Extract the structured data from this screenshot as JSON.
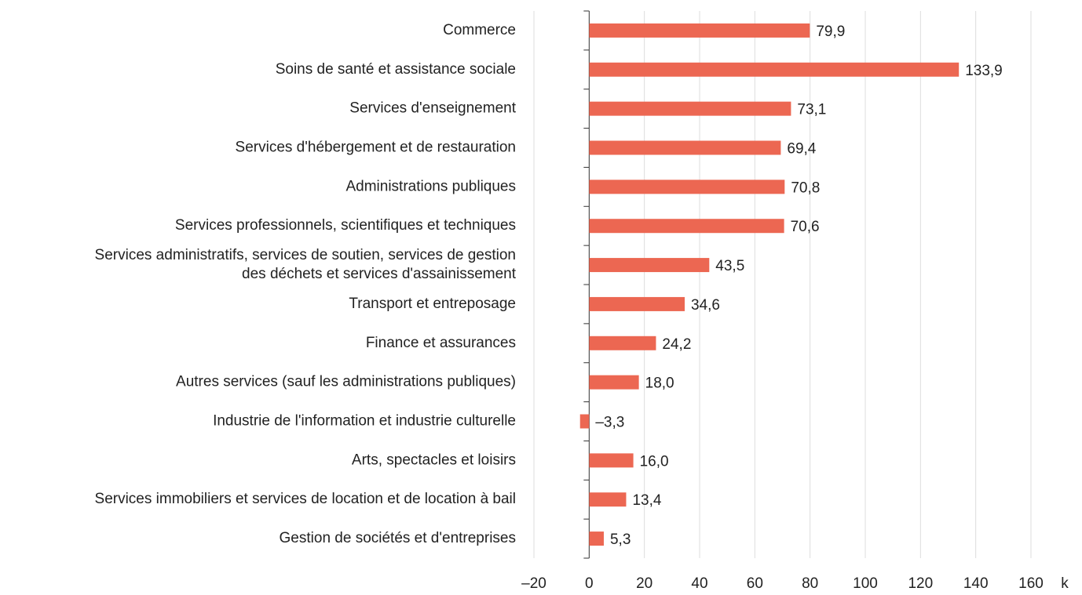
{
  "chart_data": {
    "type": "barh",
    "categories": [
      "Commerce",
      "Soins de santé et assistance sociale",
      "Services d'enseignement",
      "Services d'hébergement et de restauration",
      "Administrations publiques",
      "Services professionnels, scientifiques et techniques",
      "Services administratifs, services de soutien, services de gestion\ndes déchets et services d'assainissement",
      "Transport et entreposage",
      "Finance et assurances",
      "Autres services (sauf les administrations publiques)",
      "Industrie de l'information et industrie culturelle",
      "Arts, spectacles et loisirs",
      "Services immobiliers et services de location et de location à bail",
      "Gestion de sociétés et d'entreprises"
    ],
    "values": [
      79.9,
      133.9,
      73.1,
      69.4,
      70.8,
      70.6,
      43.5,
      34.6,
      24.2,
      18.0,
      -3.3,
      16.0,
      13.4,
      5.3
    ],
    "value_labels": [
      "79,9",
      "133,9",
      "73,1",
      "69,4",
      "70,8",
      "70,6",
      "43,5",
      "34,6",
      "24,2",
      "18,0",
      "–3,3",
      "16,0",
      "13,4",
      "5,3"
    ],
    "color": "#ec6752",
    "xlim": [
      -20,
      160
    ],
    "xticks": [
      {
        "value": -20,
        "label": "–20"
      },
      0,
      20,
      40,
      60,
      80,
      100,
      120,
      140,
      160
    ],
    "xlabel": "k",
    "grid": true
  }
}
